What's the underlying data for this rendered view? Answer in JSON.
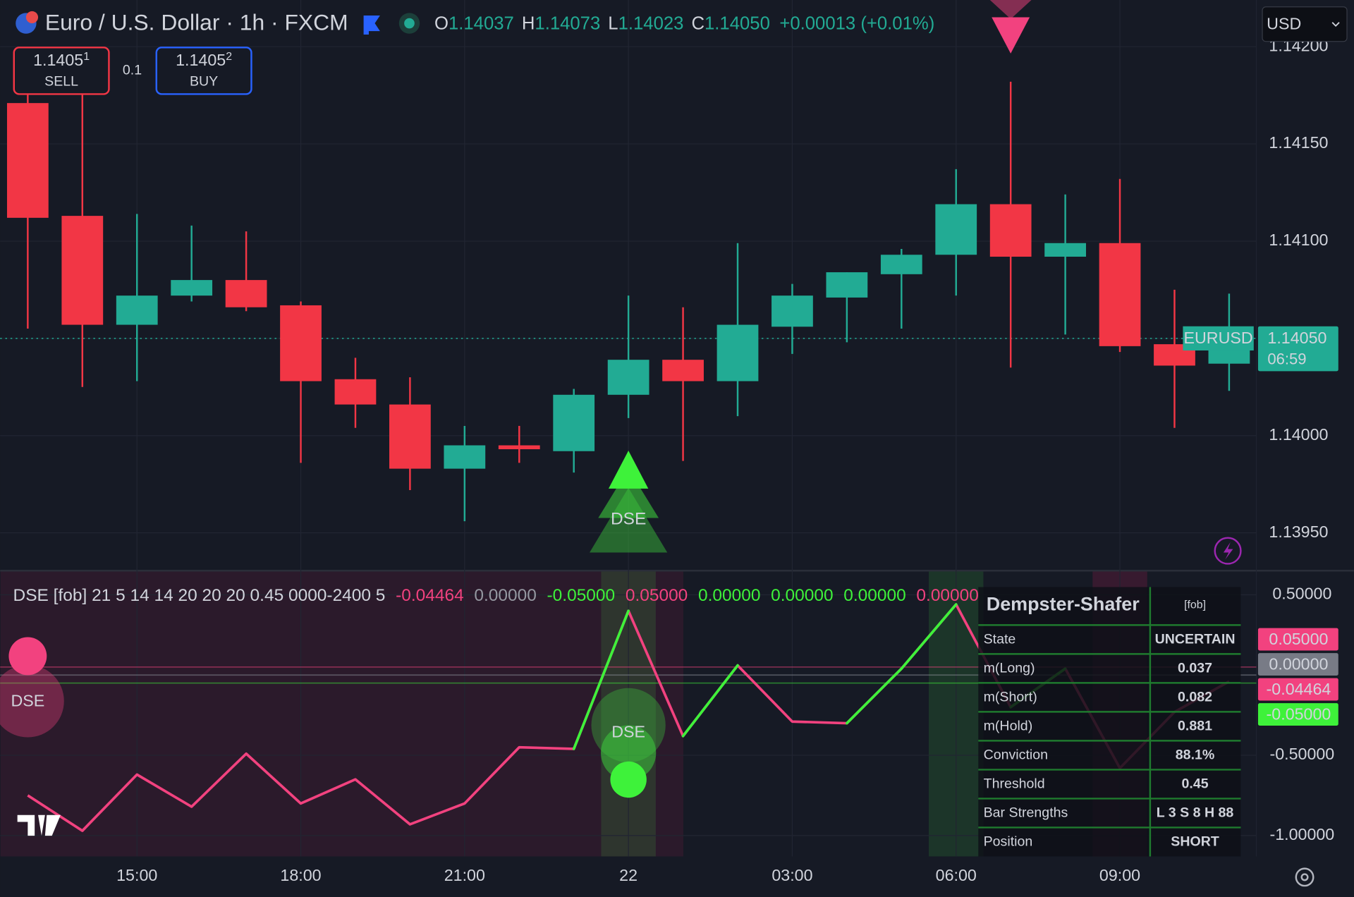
{
  "header": {
    "symbol": "Euro / U.S. Dollar · 1h · FXCM",
    "ohlc": [
      {
        "letter": "O",
        "value": "1.14037"
      },
      {
        "letter": "H",
        "value": "1.14073"
      },
      {
        "letter": "L",
        "value": "1.14023"
      },
      {
        "letter": "C",
        "value": "1.14050"
      }
    ],
    "change": "+0.00013 (+0.01%)"
  },
  "trade": {
    "sell_price": "1.1405",
    "sell_pip": "1",
    "sell_label": "SELL",
    "qty": "0.1",
    "buy_price": "1.1405",
    "buy_pip": "2",
    "buy_label": "BUY"
  },
  "currency": "USD",
  "chart_data": [
    {
      "type": "candlestick",
      "categories": [
        null,
        null,
        "15:00",
        null,
        null,
        "18:00",
        null,
        null,
        "21:00",
        null,
        null,
        "22",
        null,
        null,
        "03:00",
        null,
        null,
        "06:00",
        null,
        null,
        "09:00",
        null,
        null
      ],
      "open": [
        1.14171,
        1.14113,
        1.14057,
        1.14072,
        1.1408,
        1.14067,
        1.14029,
        1.14016,
        1.13983,
        1.13995,
        1.13992,
        1.14021,
        1.14039,
        1.14028,
        1.14056,
        1.14071,
        1.14083,
        1.14093,
        1.14119,
        1.14092,
        1.14099,
        1.14047,
        1.14037
      ],
      "high": [
        1.14178,
        1.14176,
        1.14114,
        1.14108,
        1.14105,
        1.14069,
        1.1404,
        1.1403,
        1.14005,
        1.14005,
        1.14024,
        1.14072,
        1.14066,
        1.14099,
        1.14078,
        1.14084,
        1.14096,
        1.14137,
        1.14182,
        1.14124,
        1.14132,
        1.14075,
        1.14073
      ],
      "low": [
        1.14055,
        1.14025,
        1.14028,
        1.14069,
        1.14064,
        1.13986,
        1.14004,
        1.13972,
        1.13956,
        1.13986,
        1.13981,
        1.14009,
        1.13987,
        1.1401,
        1.14042,
        1.14048,
        1.14055,
        1.14072,
        1.14035,
        1.14052,
        1.14043,
        1.14004,
        1.14023
      ],
      "close": [
        1.14112,
        1.14057,
        1.14072,
        1.1408,
        1.14066,
        1.14028,
        1.14016,
        1.13983,
        1.13995,
        1.13993,
        1.14021,
        1.14039,
        1.14028,
        1.14057,
        1.14072,
        1.14084,
        1.14093,
        1.14119,
        1.14092,
        1.14099,
        1.14046,
        1.14036,
        1.1405
      ],
      "up_color": "#22ab94",
      "down_color": "#f23645",
      "ylim": [
        1.13931,
        1.14224
      ],
      "yticks": [
        {
          "value": 1.1395,
          "label": "1.13950"
        },
        {
          "value": 1.14,
          "label": "1.14000"
        },
        {
          "value": 1.1405,
          "label": "1.14050"
        },
        {
          "value": 1.141,
          "label": "1.14100"
        },
        {
          "value": 1.1415,
          "label": "1.14150"
        },
        {
          "value": 1.142,
          "label": "1.14200"
        }
      ],
      "grid": true,
      "last_price": {
        "symbol": "EURUSD",
        "value": 1.1405,
        "label": "1.14050",
        "countdown": "06:59"
      },
      "signals": [
        {
          "index": 11,
          "side": "long",
          "label": "DSE"
        },
        {
          "index": 18,
          "side": "short"
        }
      ]
    },
    {
      "type": "line",
      "title": "DSE [fob] 21 5 14 14 20 20 20 0.45 0000-2400 5",
      "legend_values": [
        {
          "text": "-0.04464",
          "color": "#f2427f"
        },
        {
          "text": "0.00000",
          "color": "#9598a1"
        },
        {
          "text": "-0.05000",
          "color": "#3ef23a"
        },
        {
          "text": "0.05000",
          "color": "#f2427f"
        },
        {
          "text": "0.00000",
          "color": "#3ef23a"
        },
        {
          "text": "0.00000",
          "color": "#3ef23a"
        },
        {
          "text": "0.00000",
          "color": "#3ef23a"
        },
        {
          "text": "0.00000",
          "color": "#f2427f"
        }
      ],
      "more": "...",
      "series": [
        {
          "name": "DSE",
          "color": "#f2427f",
          "up_color": "#3ef23a",
          "values": [
            -0.75,
            -0.97,
            -0.62,
            -0.82,
            -0.49,
            -0.8,
            -0.65,
            -0.93,
            -0.8,
            -0.45,
            -0.46,
            0.4,
            -0.38,
            0.06,
            -0.29,
            -0.3,
            0.04,
            0.44,
            -0.2,
            0.04,
            -0.58,
            -0.23,
            -0.04
          ]
        }
      ],
      "levels": [
        {
          "value": 0.05,
          "color": "#f2427f"
        },
        {
          "value": 0,
          "color": "#9598a1"
        },
        {
          "value": -0.05,
          "color": "#3ef23a"
        }
      ],
      "axis_labels": [
        {
          "value": 0.05,
          "label": "0.05000",
          "color": "#f2427f"
        },
        {
          "value": 0,
          "label": "0.00000",
          "color": "#787b86"
        },
        {
          "value": -0.04464,
          "label": "-0.04464",
          "color": "#f2427f"
        },
        {
          "value": -0.05,
          "label": "-0.05000",
          "color": "#3ef23a"
        }
      ],
      "ylim": [
        -1.13,
        0.645
      ],
      "yticks": [
        {
          "value": 0.5,
          "label": "0.50000"
        },
        {
          "value": -0.5,
          "label": "-0.50000"
        },
        {
          "value": -1,
          "label": "-1.00000"
        }
      ],
      "zones": [
        {
          "from": 0,
          "to": 12,
          "color": "rgba(233,30,99,0.10)"
        },
        {
          "from": 11,
          "to": 11,
          "color": "rgba(60,200,60,0.16)"
        },
        {
          "from": 17,
          "to": 17,
          "color": "rgba(60,200,60,0.16)"
        },
        {
          "from": 20,
          "to": 20,
          "color": "rgba(233,30,99,0.16)"
        }
      ],
      "signals": [
        {
          "index": 0,
          "side": "short",
          "label": "DSE"
        },
        {
          "index": 11,
          "side": "long",
          "label": "DSE"
        }
      ]
    }
  ],
  "table": {
    "title": "Dempster-Shafer",
    "tag": "[fob]",
    "rows": [
      [
        "State",
        "UNCERTAIN",
        "#f5a623"
      ],
      [
        "m(Long)",
        "0.037",
        "#3ef23a"
      ],
      [
        "m(Short)",
        "0.082",
        "#f2427f"
      ],
      [
        "m(Hold)",
        "0.881",
        "#f5a623"
      ],
      [
        "Conviction",
        "88.1%",
        "#ffffff"
      ],
      [
        "Threshold",
        "0.45",
        "#ffffff"
      ],
      [
        "Bar Strengths",
        "L 3 S 8 H 88",
        "#ffffff"
      ],
      [
        "Position",
        "SHORT",
        "#f2427f"
      ]
    ]
  }
}
